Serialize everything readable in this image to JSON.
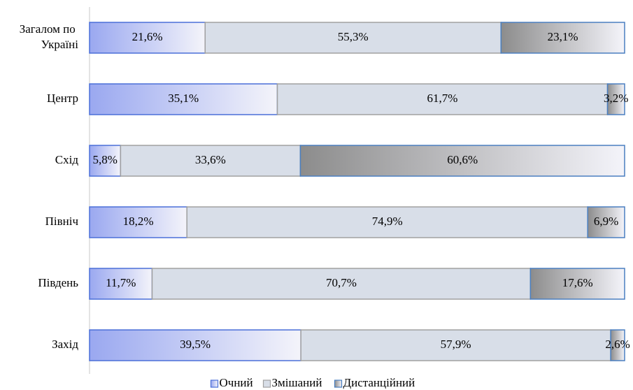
{
  "chart_data": {
    "type": "stacked_bar_horizontal",
    "categories": [
      "Загалом по Україні",
      "Центр",
      "Схід",
      "Північ",
      "Південь",
      "Захід"
    ],
    "series": [
      {
        "name": "Очний",
        "color": "#9aa8f0",
        "border": "#4a6fd8",
        "values": [
          21.6,
          35.1,
          5.8,
          18.2,
          11.7,
          39.5
        ],
        "value_labels": [
          "21,6%",
          "35,1%",
          "5,8%",
          "18,2%",
          "11,7%",
          "39,5%"
        ]
      },
      {
        "name": "Змішаний",
        "color": "#d8dee8",
        "border": "#a0a0a0",
        "values": [
          55.3,
          61.7,
          33.6,
          74.9,
          70.7,
          57.9
        ],
        "value_labels": [
          "55,3%",
          "61,7%",
          "33,6%",
          "74,9%",
          "70,7%",
          "57,9%"
        ]
      },
      {
        "name": "Дистанційний",
        "color": "#8c8c8c",
        "border": "#4a7fc0",
        "values": [
          23.1,
          3.2,
          60.6,
          6.9,
          17.6,
          2.6
        ],
        "value_labels": [
          "23,1%",
          "3,2%",
          "60,6%",
          "6,9%",
          "17,6%",
          "2,6%"
        ]
      }
    ],
    "xlim": [
      0,
      100
    ],
    "legend": "bottom"
  }
}
